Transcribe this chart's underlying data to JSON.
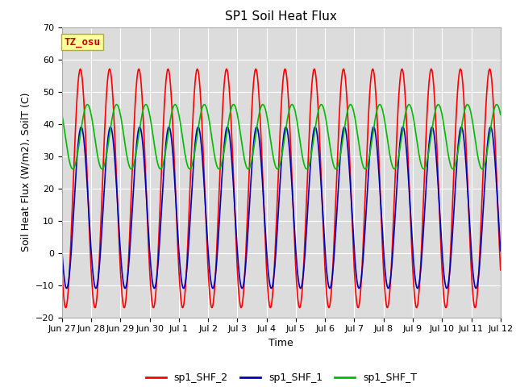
{
  "title": "SP1 Soil Heat Flux",
  "ylabel": "Soil Heat Flux (W/m2), SoilT (C)",
  "xlabel": "Time",
  "ylim": [
    -20,
    70
  ],
  "yticks": [
    -20,
    -10,
    0,
    10,
    20,
    30,
    40,
    50,
    60,
    70
  ],
  "xtick_labels": [
    "Jun 27",
    "Jun 28",
    "Jun 29",
    "Jun 30",
    "Jul 1",
    "Jul 2",
    "Jul 3",
    "Jul 4",
    "Jul 5",
    "Jul 6",
    "Jul 7",
    "Jul 8",
    "Jul 9",
    "Jul 10",
    "Jul 11",
    "Jul 12"
  ],
  "color_red": "#ff0000",
  "color_blue": "#0000bb",
  "color_green": "#00bb00",
  "bg_color": "#dcdcdc",
  "legend_labels": [
    "sp1_SHF_2",
    "sp1_SHF_1",
    "sp1_SHF_T"
  ],
  "annotation_text": "TZ_osu",
  "annotation_color": "#cc0000",
  "annotation_bg": "#ffff99",
  "title_fontsize": 11,
  "axis_fontsize": 9,
  "tick_fontsize": 8,
  "legend_fontsize": 9,
  "line_width": 1.2,
  "num_days": 15,
  "points_per_day": 144
}
